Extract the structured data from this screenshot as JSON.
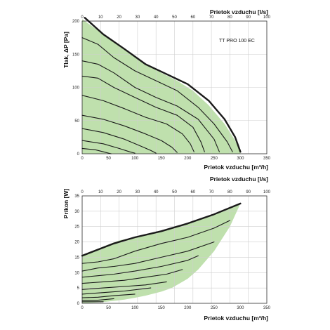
{
  "chart_data": [
    {
      "type": "line",
      "annotation": "TT PRO 100 EC",
      "xlabel": "Prietok vzduchu [m³/h]",
      "x2label": "Prietok vzduchu [l/s]",
      "ylabel": "Tlak, ΔP [Pa]",
      "xlim": [
        0,
        350
      ],
      "x2lim": [
        0,
        100
      ],
      "ylim": [
        0,
        200
      ],
      "x_ticks": [
        0,
        50,
        100,
        150,
        200,
        250,
        300,
        350
      ],
      "x2_ticks": [
        0,
        10,
        20,
        30,
        40,
        50,
        60,
        70,
        80,
        90,
        100
      ],
      "y_ticks": [
        0,
        50,
        100,
        150,
        200
      ],
      "grid": true,
      "fill_color": "#bfe0ad",
      "envelope": {
        "x": [
          0,
          40,
          80,
          120,
          150,
          180,
          210,
          240,
          270,
          290,
          300
        ],
        "y": [
          203,
          180,
          158,
          135,
          122,
          110,
          95,
          73,
          45,
          20,
          3
        ]
      },
      "series": [
        {
          "x": [
            5,
            40,
            80,
            120,
            160,
            200,
            240,
            270,
            290,
            300
          ],
          "y": [
            205,
            180,
            158,
            135,
            120,
            105,
            80,
            52,
            25,
            3
          ],
          "bold": true
        },
        {
          "x": [
            0,
            30,
            60,
            100,
            140,
            180,
            220,
            250,
            275,
            285
          ],
          "y": [
            175,
            165,
            145,
            125,
            110,
            95,
            70,
            45,
            18,
            3
          ]
        },
        {
          "x": [
            0,
            30,
            60,
            100,
            140,
            180,
            220,
            250,
            260
          ],
          "y": [
            140,
            135,
            122,
            100,
            85,
            72,
            52,
            22,
            3
          ]
        },
        {
          "x": [
            0,
            30,
            60,
            100,
            140,
            180,
            210,
            225,
            232
          ],
          "y": [
            117,
            114,
            100,
            85,
            70,
            58,
            40,
            18,
            3
          ]
        },
        {
          "x": [
            0,
            40,
            80,
            120,
            160,
            190,
            205,
            212
          ],
          "y": [
            88,
            80,
            68,
            55,
            45,
            30,
            15,
            3
          ]
        },
        {
          "x": [
            0,
            40,
            80,
            120,
            150,
            170,
            180
          ],
          "y": [
            58,
            52,
            42,
            30,
            20,
            10,
            2
          ]
        },
        {
          "x": [
            0,
            40,
            80,
            110,
            130,
            140
          ],
          "y": [
            38,
            32,
            22,
            12,
            5,
            1
          ]
        },
        {
          "x": [
            0,
            40,
            70,
            90,
            100
          ],
          "y": [
            20,
            15,
            8,
            3,
            1
          ]
        },
        {
          "x": [
            0,
            25,
            40,
            50,
            55
          ],
          "y": [
            8,
            6,
            3,
            1,
            0
          ]
        }
      ]
    },
    {
      "type": "line",
      "xlabel": "Prietok vzduchu [m³/h]",
      "x2label": "Prietok vzduchu [l/s]",
      "ylabel": "Príkon [W]",
      "xlim": [
        0,
        350
      ],
      "x2lim": [
        0,
        100
      ],
      "ylim": [
        0,
        35
      ],
      "x_ticks": [
        0,
        50,
        100,
        150,
        200,
        250,
        300,
        350
      ],
      "x2_ticks": [
        0,
        10,
        20,
        30,
        40,
        50,
        60,
        70,
        80,
        90,
        100
      ],
      "y_ticks": [
        0,
        5,
        10,
        15,
        20,
        25,
        30,
        35
      ],
      "grid": true,
      "fill_color": "#bfe0ad",
      "envelope_top": {
        "x": [
          0,
          40,
          70,
          100,
          150,
          200,
          250,
          300
        ],
        "y": [
          15.8,
          18.5,
          20.5,
          21.5,
          23.5,
          26,
          29,
          32.5
        ]
      },
      "envelope_bottom": {
        "x": [
          300,
          280,
          250,
          220,
          200,
          170,
          150,
          120,
          100,
          80,
          60,
          40,
          20,
          0
        ],
        "y": [
          32.5,
          25,
          17,
          11,
          8,
          5,
          3.8,
          2.5,
          1.8,
          1.2,
          0.8,
          0.4,
          0.2,
          0
        ]
      },
      "series": [
        {
          "x": [
            0,
            30,
            60,
            80,
            100,
            150,
            200,
            250,
            300
          ],
          "y": [
            15.5,
            17.5,
            19.5,
            20.5,
            21.5,
            23.5,
            26,
            29,
            32.5
          ],
          "bold": true
        },
        {
          "x": [
            0,
            30,
            60,
            100,
            150,
            200,
            250,
            280
          ],
          "y": [
            13,
            13.5,
            14.5,
            17,
            19.5,
            21.5,
            24.5,
            27
          ]
        },
        {
          "x": [
            0,
            30,
            60,
            100,
            150,
            200,
            250
          ],
          "y": [
            10.5,
            11.5,
            12,
            13,
            15,
            17,
            20
          ]
        },
        {
          "x": [
            0,
            30,
            60,
            100,
            150,
            200,
            220
          ],
          "y": [
            8.5,
            9,
            9.5,
            10.5,
            12,
            14,
            15.5
          ]
        },
        {
          "x": [
            0,
            40,
            80,
            120,
            160,
            190
          ],
          "y": [
            6.5,
            7,
            7.5,
            8.5,
            9.5,
            11
          ]
        },
        {
          "x": [
            0,
            40,
            80,
            120,
            160
          ],
          "y": [
            4.5,
            5,
            5.5,
            6,
            7
          ]
        },
        {
          "x": [
            0,
            40,
            80,
            130
          ],
          "y": [
            3,
            3.5,
            4,
            5
          ]
        },
        {
          "x": [
            0,
            30,
            60,
            100
          ],
          "y": [
            1.8,
            2,
            2.5,
            3
          ]
        },
        {
          "x": [
            0,
            30,
            60
          ],
          "y": [
            1,
            1,
            1.5
          ]
        },
        {
          "x": [
            0,
            20,
            40
          ],
          "y": [
            0.5,
            0.5,
            0.5
          ]
        }
      ]
    }
  ]
}
